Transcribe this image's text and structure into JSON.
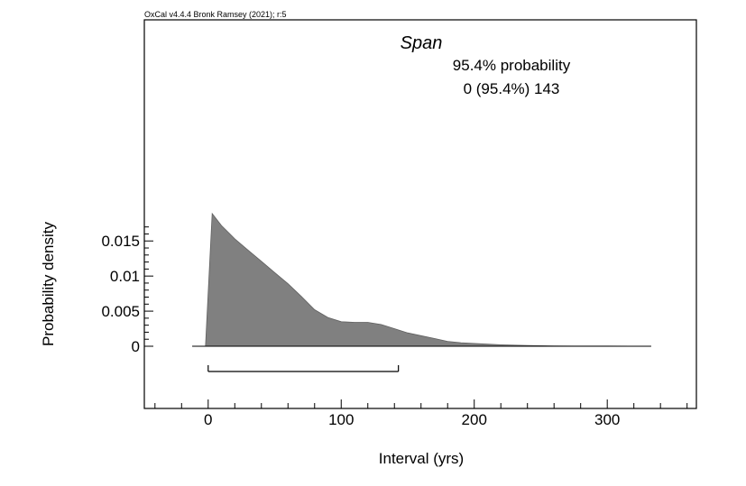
{
  "header": {
    "software_credit": "OxCal v4.4.4 Bronk Ramsey (2021); r:5"
  },
  "chart_data": {
    "type": "area",
    "title": "Span",
    "subtitle_lines": [
      "95.4% probability",
      "0 (95.4%) 143"
    ],
    "xlabel": "Interval (yrs)",
    "ylabel": "Probability density",
    "xlim": [
      -48,
      367
    ],
    "ylim": [
      0,
      0.0185
    ],
    "x_ticks": [
      0,
      100,
      200,
      300
    ],
    "y_ticks": [
      0,
      0.005,
      0.01,
      0.015
    ],
    "y_tick_labels": [
      "0",
      "0.005",
      "0.01",
      "0.015"
    ],
    "grid": false,
    "fill_color": "#808080",
    "series": [
      {
        "x": [
          -12,
          -2,
          3,
          10,
          20,
          30,
          40,
          50,
          60,
          70,
          80,
          90,
          100,
          110,
          120,
          130,
          140,
          150,
          160,
          170,
          180,
          190,
          200,
          210,
          220,
          230,
          240,
          250,
          260,
          280,
          300,
          333
        ],
        "values": [
          0,
          0,
          0.0189,
          0.0172,
          0.0153,
          0.0137,
          0.0121,
          0.0105,
          0.0089,
          0.0071,
          0.0052,
          0.0041,
          0.0035,
          0.0034,
          0.0034,
          0.0031,
          0.0025,
          0.0019,
          0.0015,
          0.0011,
          0.0007,
          0.0005,
          0.0004,
          0.0003,
          0.0002,
          0.00015,
          0.0001,
          8e-05,
          5e-05,
          3e-05,
          2e-05,
          0
        ]
      }
    ],
    "range_bracket": {
      "from": 0,
      "to": 143,
      "probability": "95.4%"
    }
  }
}
